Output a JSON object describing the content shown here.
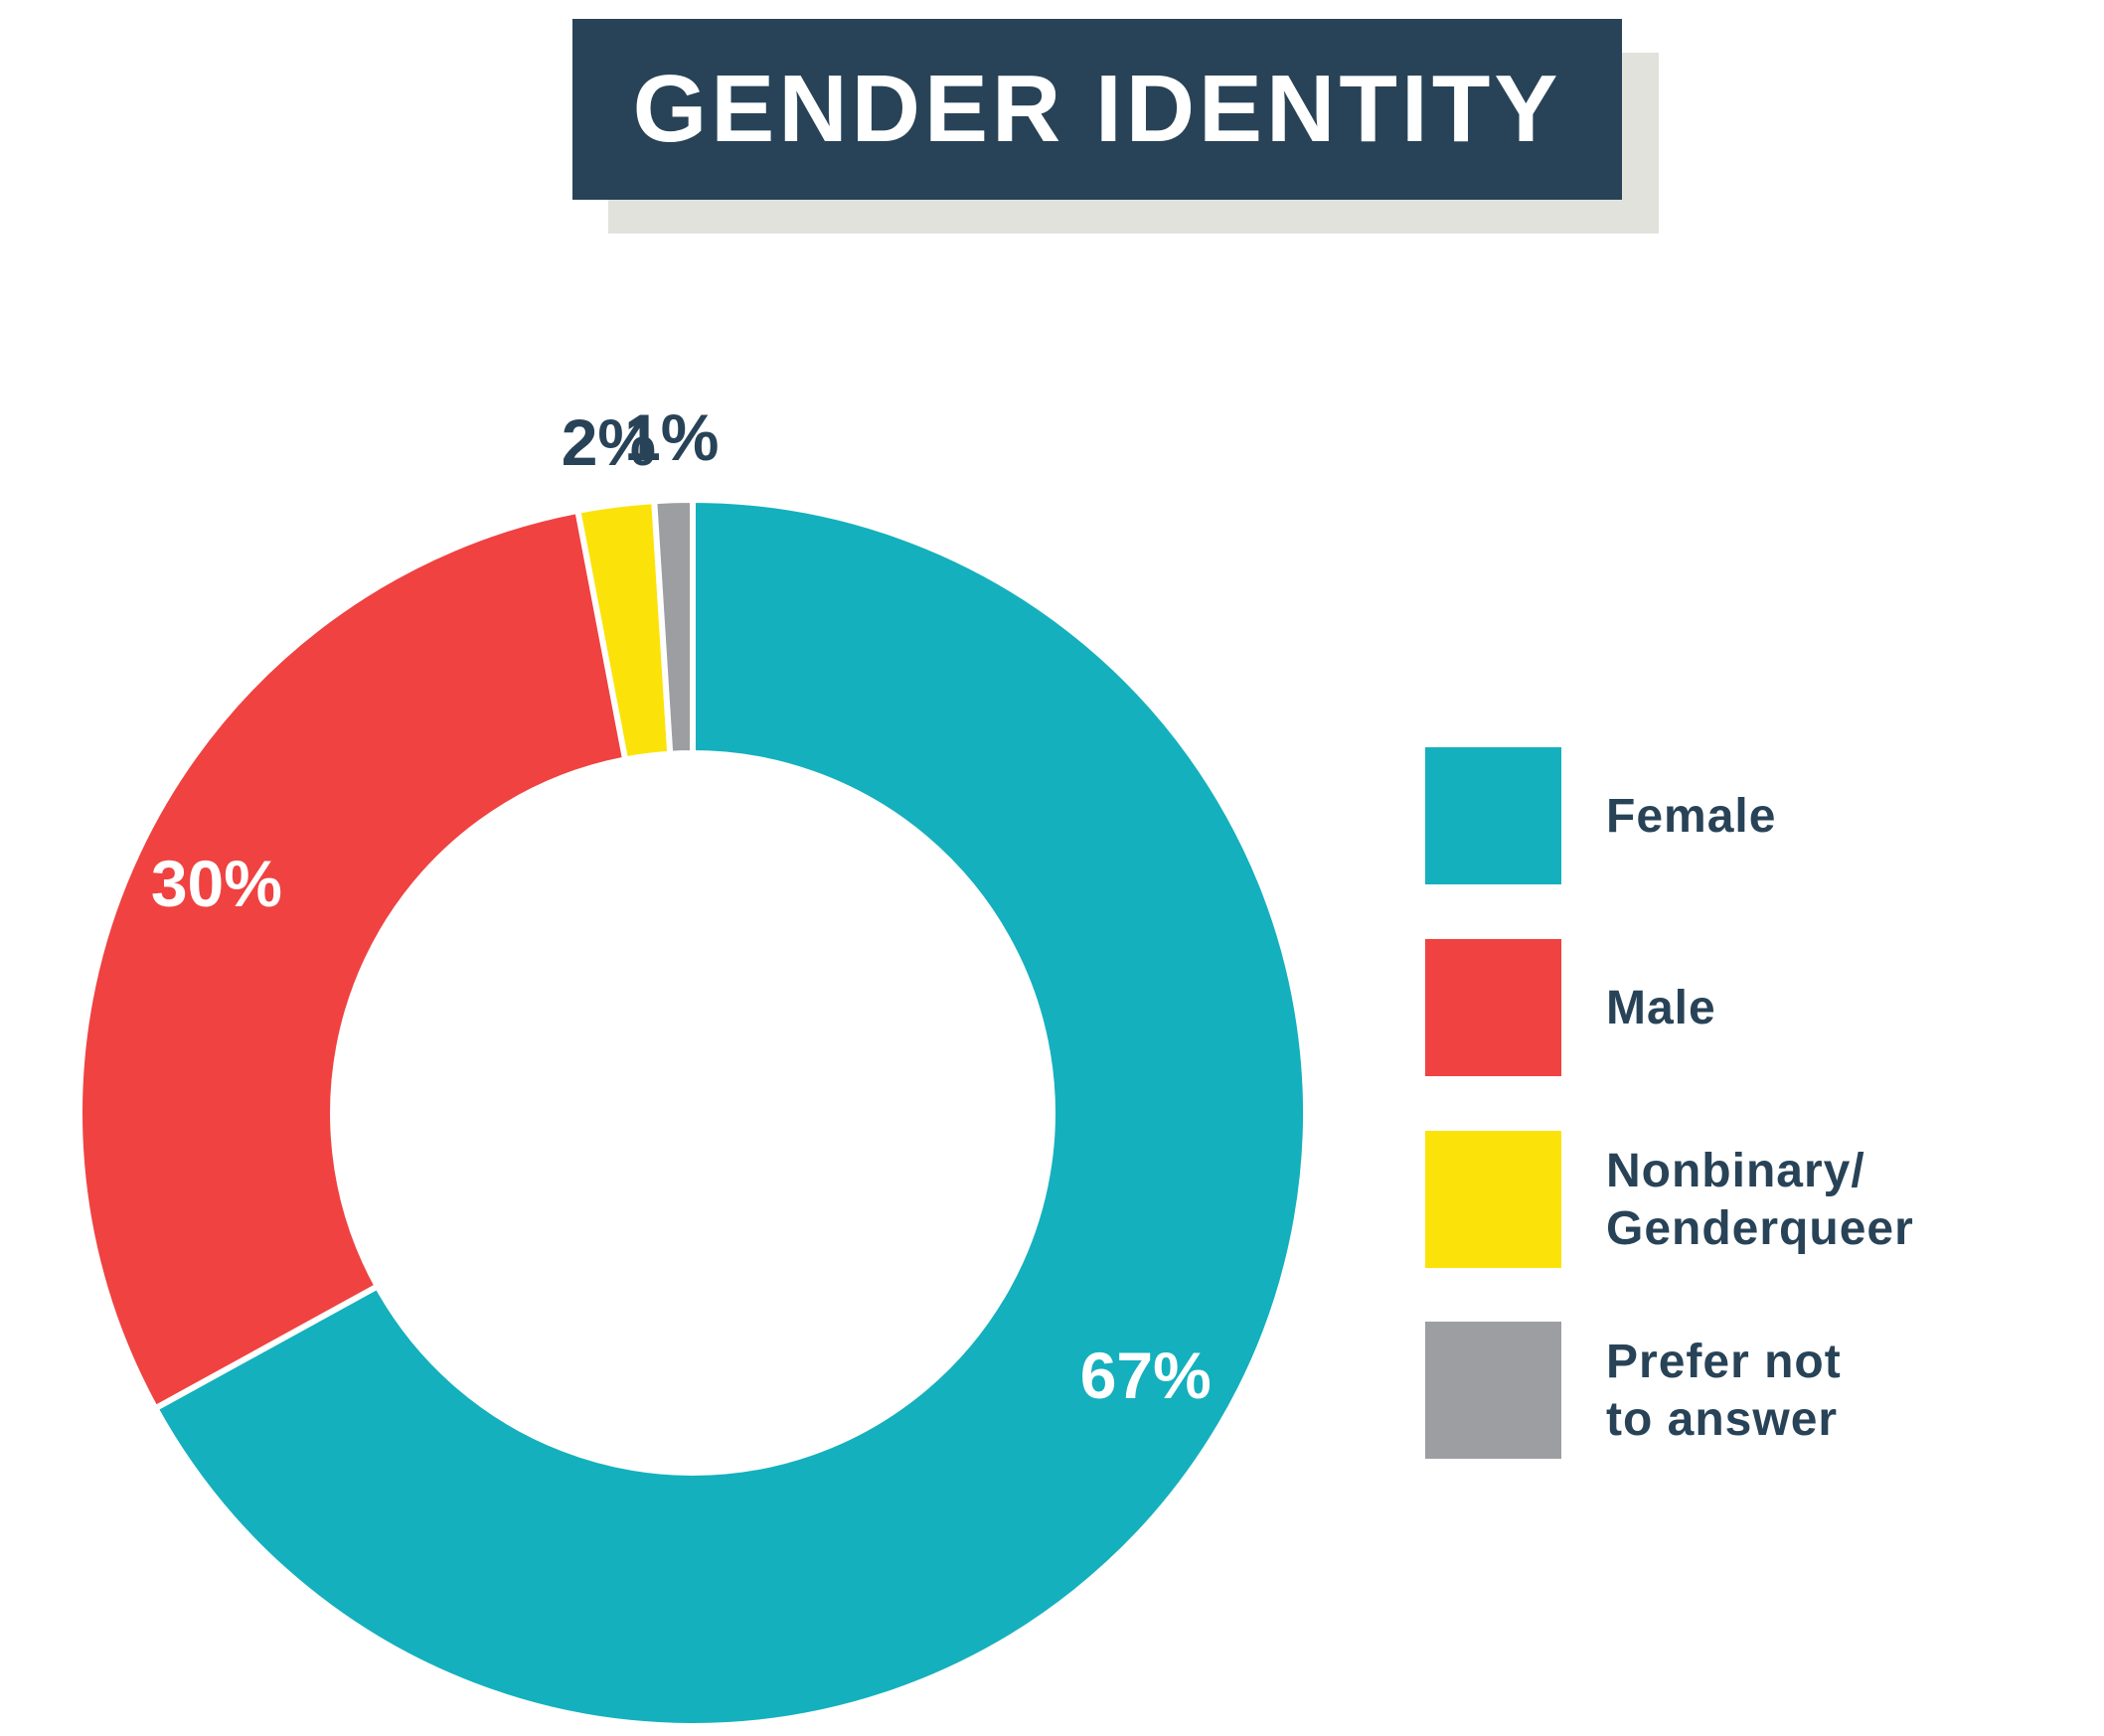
{
  "chart_data": {
    "type": "pie",
    "title": "GENDER IDENTITY",
    "categories": [
      "Female",
      "Male",
      "Nonbinary/\nGenderqueer",
      "Prefer not\nto answer"
    ],
    "values": [
      67,
      30,
      2,
      1
    ],
    "data_labels": [
      "67%",
      "30%",
      "2%",
      "1%"
    ],
    "colors": [
      "#14b0bd",
      "#ef4241",
      "#fbe30a",
      "#9c9ea1"
    ],
    "label_color_inside": "#ffffff",
    "label_color_outside": "#284357",
    "legend_placement": "right",
    "donut": true
  }
}
